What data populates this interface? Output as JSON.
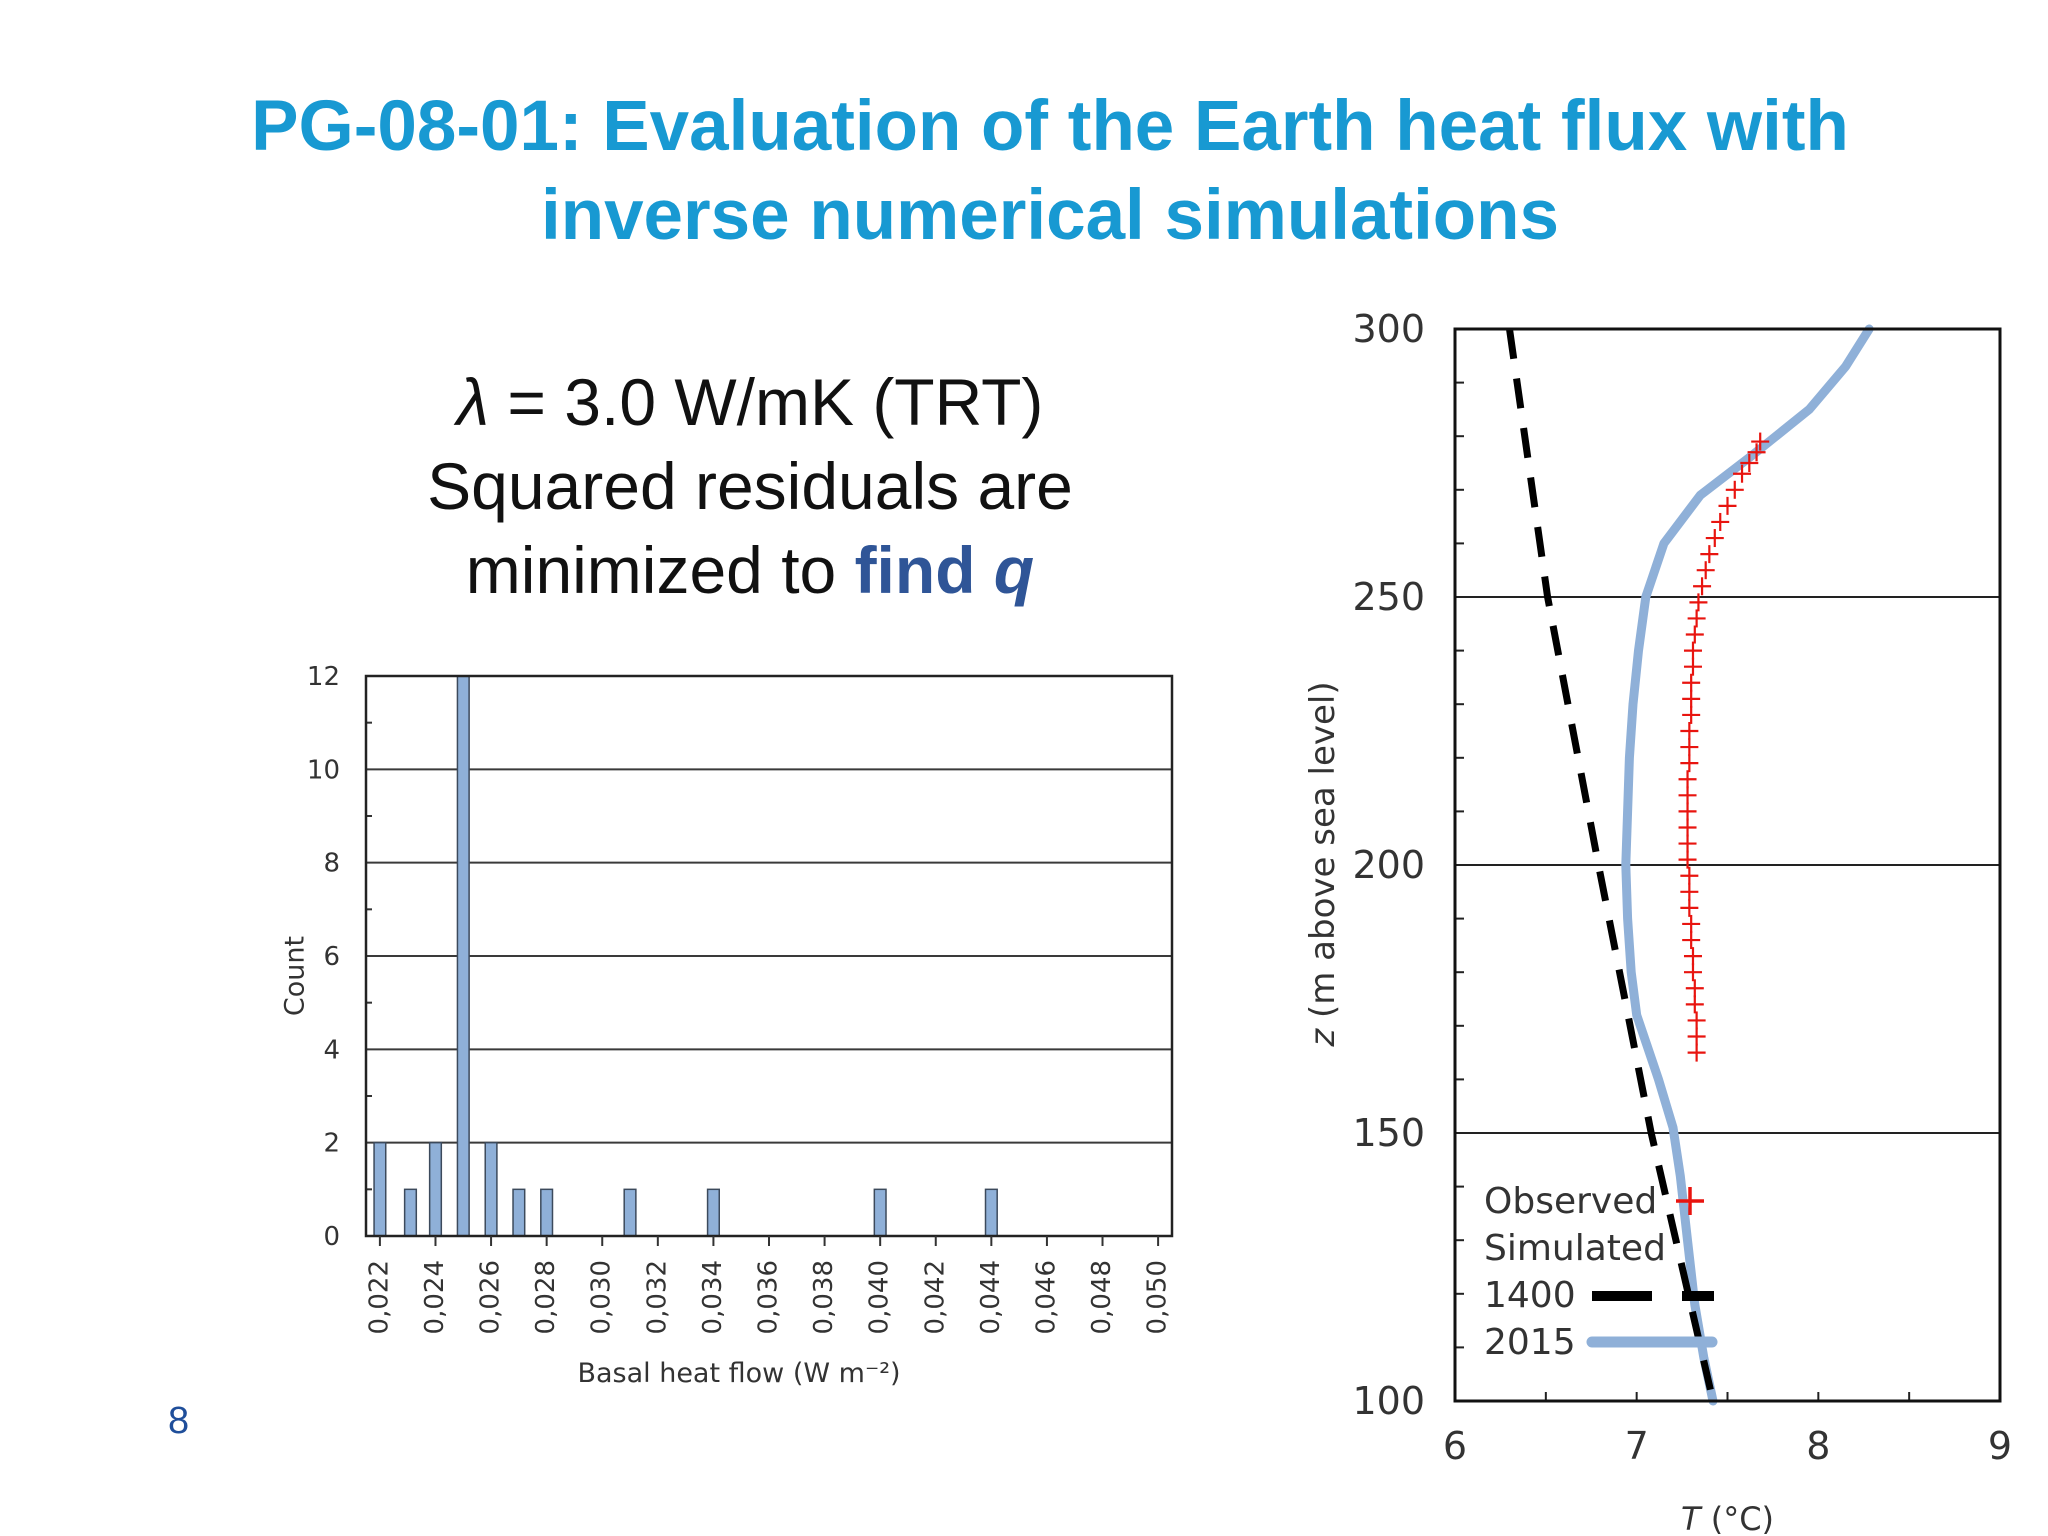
{
  "slide": {
    "title_line1": "PG-08-01: Evaluation of the Earth heat flux with",
    "title_line2": "inverse numerical simulations",
    "subtitle_lambda_symbol": "λ",
    "subtitle_line1_rest": " = 3.0 W/mK (TRT)",
    "subtitle_line2": "Squared residuals are",
    "subtitle_line3_prefix": "minimized to ",
    "subtitle_find": "find ",
    "subtitle_q": "q",
    "page_number": "8"
  },
  "chart_data": [
    {
      "type": "bar",
      "xlabel": "Basal heat flow (W m⁻²)",
      "ylabel": "Count",
      "ylim": [
        0,
        12
      ],
      "yticks": [
        "0",
        "2",
        "4",
        "6",
        "8",
        "10",
        "12"
      ],
      "xlim": [
        0.0215,
        0.0505
      ],
      "xtick_values": [
        0.022,
        0.024,
        0.026,
        0.028,
        0.03,
        0.032,
        0.034,
        0.036,
        0.038,
        0.04,
        0.042,
        0.044,
        0.046,
        0.048,
        0.05
      ],
      "xtick_labels": [
        "0,022",
        "0,024",
        "0,026",
        "0,028",
        "0,030",
        "0,032",
        "0,034",
        "0,036",
        "0,038",
        "0,040",
        "0,042",
        "0,044",
        "0,046",
        "0,048",
        "0,050"
      ],
      "grid": true,
      "bar_color": "#8fb0d8",
      "bars": [
        {
          "x": 0.022,
          "count": 2
        },
        {
          "x": 0.0231,
          "count": 1
        },
        {
          "x": 0.024,
          "count": 2
        },
        {
          "x": 0.025,
          "count": 12
        },
        {
          "x": 0.026,
          "count": 2
        },
        {
          "x": 0.027,
          "count": 1
        },
        {
          "x": 0.028,
          "count": 1
        },
        {
          "x": 0.031,
          "count": 1
        },
        {
          "x": 0.034,
          "count": 1
        },
        {
          "x": 0.04,
          "count": 1
        },
        {
          "x": 0.044,
          "count": 1
        }
      ]
    },
    {
      "type": "line",
      "xlabel_symbol": "T",
      "xlabel_unit": " (°C)",
      "ylabel_symbol": "z",
      "ylabel_unit": " (m above sea level)",
      "xlim": [
        6,
        9
      ],
      "ylim": [
        100,
        300
      ],
      "xticks": [
        "6",
        "7",
        "8",
        "9"
      ],
      "yticks": [
        "100",
        "150",
        "200",
        "250",
        "300"
      ],
      "grid": true,
      "legend": {
        "position": "bottom-left",
        "observed": "Observed",
        "simulated_header": "Simulated",
        "series_1400": "1400",
        "series_2015": "2015"
      },
      "series": [
        {
          "key": "observed",
          "color": "#e8140f",
          "points": [
            [
              7.33,
              165
            ],
            [
              7.33,
              168
            ],
            [
              7.33,
              171
            ],
            [
              7.32,
              174
            ],
            [
              7.32,
              177
            ],
            [
              7.31,
              180
            ],
            [
              7.31,
              183
            ],
            [
              7.3,
              186
            ],
            [
              7.3,
              189
            ],
            [
              7.29,
              192
            ],
            [
              7.29,
              195
            ],
            [
              7.29,
              198
            ],
            [
              7.28,
              201
            ],
            [
              7.28,
              204
            ],
            [
              7.28,
              207
            ],
            [
              7.28,
              210
            ],
            [
              7.28,
              213
            ],
            [
              7.28,
              216
            ],
            [
              7.29,
              219
            ],
            [
              7.29,
              222
            ],
            [
              7.29,
              225
            ],
            [
              7.3,
              228
            ],
            [
              7.3,
              231
            ],
            [
              7.3,
              234
            ],
            [
              7.31,
              237
            ],
            [
              7.31,
              240
            ],
            [
              7.32,
              243
            ],
            [
              7.33,
              246
            ],
            [
              7.34,
              249
            ],
            [
              7.36,
              252
            ],
            [
              7.38,
              255
            ],
            [
              7.4,
              258
            ],
            [
              7.43,
              261
            ],
            [
              7.46,
              264
            ],
            [
              7.5,
              267
            ],
            [
              7.54,
              270
            ],
            [
              7.58,
              273
            ],
            [
              7.62,
              275
            ],
            [
              7.66,
              277
            ],
            [
              7.68,
              279
            ]
          ]
        },
        {
          "key": "1400",
          "color": "#000000",
          "points": [
            [
              6.3,
              300
            ],
            [
              6.51,
              250
            ],
            [
              6.79,
              200
            ],
            [
              7.08,
              150
            ],
            [
              7.42,
              100
            ]
          ]
        },
        {
          "key": "2015",
          "color": "#8fb0d8",
          "points": [
            [
              7.42,
              100
            ],
            [
              7.37,
              108
            ],
            [
              7.32,
              118
            ],
            [
              7.28,
              130
            ],
            [
              7.24,
              142
            ],
            [
              7.2,
              151
            ],
            [
              7.12,
              160
            ],
            [
              7.05,
              167
            ],
            [
              7.0,
              172
            ],
            [
              6.97,
              180
            ],
            [
              6.95,
              190
            ],
            [
              6.94,
              200
            ],
            [
              6.95,
              210
            ],
            [
              6.96,
              220
            ],
            [
              6.98,
              230
            ],
            [
              7.01,
              240
            ],
            [
              7.05,
              250
            ],
            [
              7.15,
              260
            ],
            [
              7.35,
              269
            ],
            [
              7.62,
              276
            ],
            [
              7.95,
              285
            ],
            [
              8.15,
              293
            ],
            [
              8.28,
              300
            ]
          ]
        }
      ]
    }
  ]
}
